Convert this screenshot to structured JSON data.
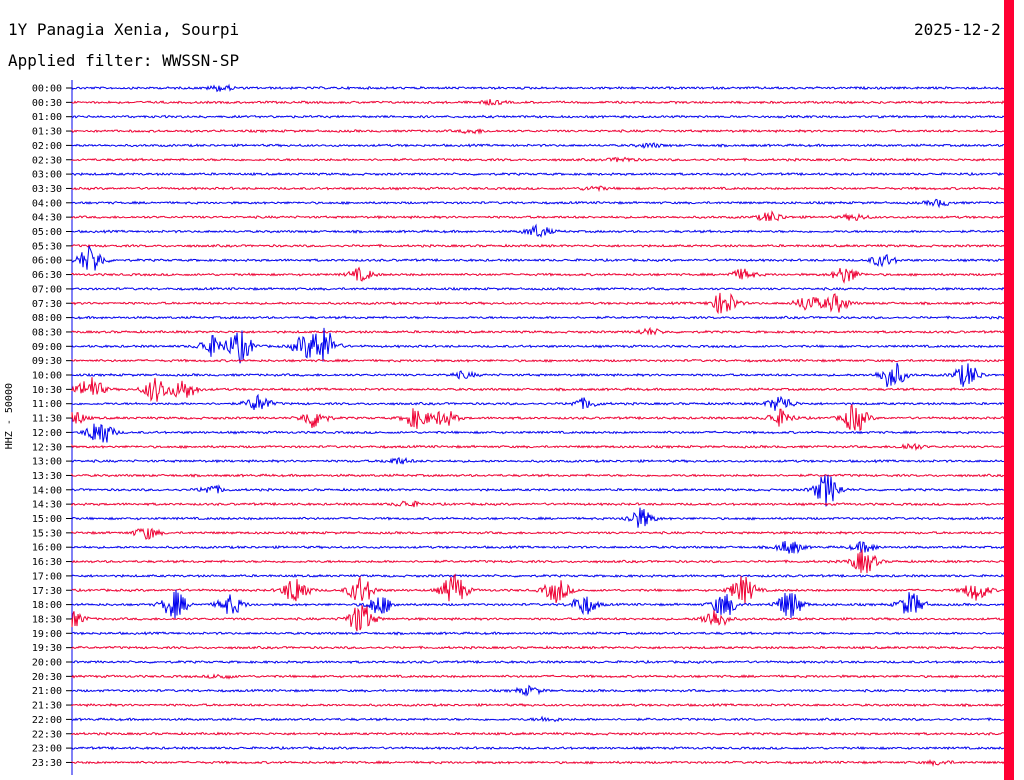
{
  "header": {
    "station": "1Y Panagia Xenia, Sourpi",
    "filter": "Applied filter: WWSSN-SP",
    "date": "2025-12-2"
  },
  "chart_data": {
    "type": "line",
    "ylabel": "HHZ - 50000",
    "colors": [
      "#0000ee",
      "#ee0033"
    ],
    "cursor_color": "#ff0033",
    "rows": [
      {
        "time": "00:00",
        "events": [
          {
            "t": 0.16,
            "a": 3
          }
        ]
      },
      {
        "time": "00:30",
        "events": [
          {
            "t": 0.45,
            "a": 2
          }
        ]
      },
      {
        "time": "01:00",
        "events": []
      },
      {
        "time": "01:30",
        "events": [
          {
            "t": 0.43,
            "a": 2
          }
        ]
      },
      {
        "time": "02:00",
        "events": [
          {
            "t": 0.62,
            "a": 2
          }
        ]
      },
      {
        "time": "02:30",
        "events": [
          {
            "t": 0.59,
            "a": 2
          }
        ]
      },
      {
        "time": "03:00",
        "events": []
      },
      {
        "time": "03:30",
        "events": [
          {
            "t": 0.56,
            "a": 2
          }
        ]
      },
      {
        "time": "04:00",
        "events": [
          {
            "t": 0.93,
            "a": 3
          }
        ]
      },
      {
        "time": "04:30",
        "events": [
          {
            "t": 0.75,
            "a": 5
          },
          {
            "t": 0.84,
            "a": 3
          }
        ]
      },
      {
        "time": "05:00",
        "events": [
          {
            "t": 0.5,
            "a": 6
          }
        ]
      },
      {
        "time": "05:30",
        "events": []
      },
      {
        "time": "06:00",
        "events": [
          {
            "t": 0.02,
            "a": 14
          },
          {
            "t": 0.87,
            "a": 6
          }
        ]
      },
      {
        "time": "06:30",
        "events": [
          {
            "t": 0.31,
            "a": 6
          },
          {
            "t": 0.72,
            "a": 5
          },
          {
            "t": 0.83,
            "a": 8
          }
        ]
      },
      {
        "time": "07:00",
        "events": []
      },
      {
        "time": "07:30",
        "events": [
          {
            "t": 0.7,
            "a": 12
          },
          {
            "t": 0.79,
            "a": 8
          },
          {
            "t": 0.82,
            "a": 9
          }
        ]
      },
      {
        "time": "08:00",
        "events": []
      },
      {
        "time": "08:30",
        "events": [
          {
            "t": 0.62,
            "a": 3
          }
        ]
      },
      {
        "time": "09:00",
        "events": [
          {
            "t": 0.15,
            "a": 10
          },
          {
            "t": 0.18,
            "a": 16
          },
          {
            "t": 0.25,
            "a": 10
          },
          {
            "t": 0.27,
            "a": 18
          }
        ]
      },
      {
        "time": "09:30",
        "events": []
      },
      {
        "time": "10:00",
        "events": [
          {
            "t": 0.42,
            "a": 3
          },
          {
            "t": 0.88,
            "a": 14
          },
          {
            "t": 0.96,
            "a": 12
          }
        ]
      },
      {
        "time": "10:30",
        "events": [
          {
            "t": 0.02,
            "a": 12
          },
          {
            "t": 0.09,
            "a": 12
          },
          {
            "t": 0.12,
            "a": 10
          }
        ]
      },
      {
        "time": "11:00",
        "events": [
          {
            "t": 0.2,
            "a": 8
          },
          {
            "t": 0.55,
            "a": 5
          },
          {
            "t": 0.76,
            "a": 8
          }
        ]
      },
      {
        "time": "11:30",
        "events": [
          {
            "t": 0.0,
            "a": 8
          },
          {
            "t": 0.26,
            "a": 10
          },
          {
            "t": 0.37,
            "a": 10
          },
          {
            "t": 0.4,
            "a": 8
          },
          {
            "t": 0.76,
            "a": 8
          },
          {
            "t": 0.84,
            "a": 14
          }
        ]
      },
      {
        "time": "12:00",
        "events": [
          {
            "t": 0.03,
            "a": 14
          }
        ]
      },
      {
        "time": "12:30",
        "events": [
          {
            "t": 0.9,
            "a": 3
          }
        ]
      },
      {
        "time": "13:00",
        "events": [
          {
            "t": 0.35,
            "a": 3
          }
        ]
      },
      {
        "time": "13:30",
        "events": []
      },
      {
        "time": "14:00",
        "events": [
          {
            "t": 0.15,
            "a": 4
          },
          {
            "t": 0.81,
            "a": 16
          }
        ]
      },
      {
        "time": "14:30",
        "events": [
          {
            "t": 0.36,
            "a": 3
          }
        ]
      },
      {
        "time": "15:00",
        "events": [
          {
            "t": 0.61,
            "a": 10
          }
        ]
      },
      {
        "time": "15:30",
        "events": [
          {
            "t": 0.08,
            "a": 6
          }
        ]
      },
      {
        "time": "16:00",
        "events": [
          {
            "t": 0.77,
            "a": 7
          },
          {
            "t": 0.85,
            "a": 5
          }
        ]
      },
      {
        "time": "16:30",
        "events": [
          {
            "t": 0.85,
            "a": 12
          }
        ]
      },
      {
        "time": "17:00",
        "events": []
      },
      {
        "time": "17:30",
        "events": [
          {
            "t": 0.24,
            "a": 14
          },
          {
            "t": 0.31,
            "a": 14
          },
          {
            "t": 0.41,
            "a": 16
          },
          {
            "t": 0.52,
            "a": 12
          },
          {
            "t": 0.72,
            "a": 14
          },
          {
            "t": 0.97,
            "a": 10
          }
        ]
      },
      {
        "time": "18:00",
        "events": [
          {
            "t": 0.11,
            "a": 14
          },
          {
            "t": 0.17,
            "a": 10
          },
          {
            "t": 0.33,
            "a": 10
          },
          {
            "t": 0.55,
            "a": 10
          },
          {
            "t": 0.7,
            "a": 12
          },
          {
            "t": 0.77,
            "a": 14
          },
          {
            "t": 0.9,
            "a": 12
          }
        ]
      },
      {
        "time": "18:30",
        "events": [
          {
            "t": 0.0,
            "a": 8
          },
          {
            "t": 0.31,
            "a": 16
          },
          {
            "t": 0.69,
            "a": 10
          }
        ]
      },
      {
        "time": "19:00",
        "events": []
      },
      {
        "time": "19:30",
        "events": []
      },
      {
        "time": "20:00",
        "events": []
      },
      {
        "time": "20:30",
        "events": [
          {
            "t": 0.16,
            "a": 2
          }
        ]
      },
      {
        "time": "21:00",
        "events": [
          {
            "t": 0.49,
            "a": 4
          }
        ]
      },
      {
        "time": "21:30",
        "events": []
      },
      {
        "time": "22:00",
        "events": [
          {
            "t": 0.51,
            "a": 2
          }
        ]
      },
      {
        "time": "22:30",
        "events": []
      },
      {
        "time": "23:00",
        "events": []
      },
      {
        "time": "23:30",
        "events": [
          {
            "t": 0.93,
            "a": 2
          }
        ]
      }
    ]
  }
}
